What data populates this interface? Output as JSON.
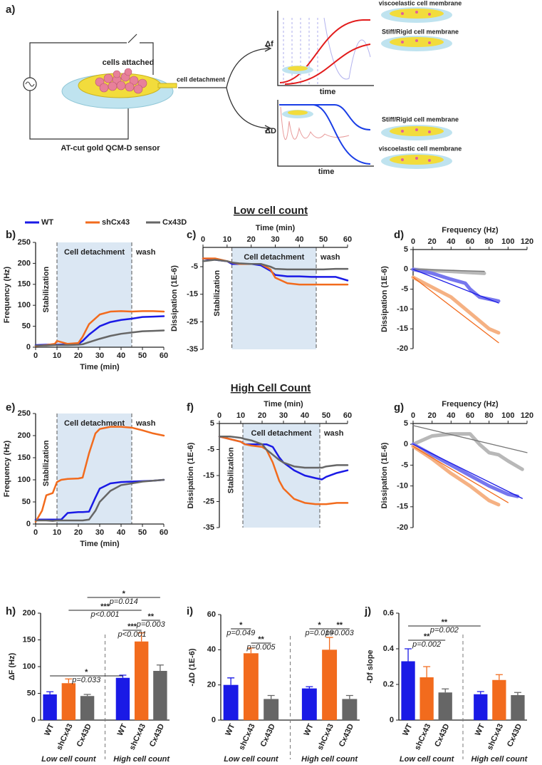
{
  "diagram": {
    "panel_label": "a)",
    "cells_label": "cells attached",
    "sensor_label": "AT-cut gold QCM-D sensor",
    "arrow_label": "cell detachment",
    "top_plot": {
      "y_label": "Δf",
      "x_label": "time",
      "upper_label": "viscoelastic cell membrane",
      "lower_label": "Stiff/Rigid cell membrane"
    },
    "bottom_plot": {
      "y_label": "ΔD",
      "x_label": "time",
      "upper_label": "Stiff/Rigid cell membrane",
      "lower_label": "viscoelastic cell membrane"
    }
  },
  "section_titles": [
    "Low cell count",
    "High Cell Count"
  ],
  "chart_data": [
    {
      "type": "line",
      "panel_label": "b)",
      "x_label": "Time (min)",
      "y_label": "Frequency (Hz)",
      "x_axis_position": "bottom",
      "xlim": [
        0,
        60
      ],
      "xticks": [
        0,
        10,
        20,
        30,
        40,
        50,
        60
      ],
      "ylim": [
        0,
        250
      ],
      "yticks": [
        0,
        50,
        100,
        150,
        200,
        250
      ],
      "shaded_region": [
        10,
        45
      ],
      "region_labels": [
        "Stabilization",
        "Cell detachment",
        "wash"
      ],
      "series": [
        {
          "name": "WT",
          "color": "#1a1ae6",
          "x": [
            0,
            5,
            9,
            10,
            15,
            20,
            22,
            25,
            30,
            35,
            40,
            45,
            50,
            55,
            60
          ],
          "values": [
            5,
            6,
            7,
            6,
            7,
            8,
            15,
            30,
            50,
            60,
            65,
            68,
            72,
            73,
            74
          ]
        },
        {
          "name": "shCx43",
          "color": "#f26b1d",
          "x": [
            0,
            5,
            9,
            10,
            15,
            20,
            22,
            25,
            30,
            35,
            40,
            45,
            50,
            55,
            60
          ],
          "values": [
            3,
            5,
            8,
            15,
            8,
            10,
            25,
            55,
            78,
            85,
            86,
            85,
            86,
            86,
            85
          ]
        },
        {
          "name": "Cx43D",
          "color": "#666666",
          "x": [
            0,
            5,
            9,
            10,
            15,
            20,
            22,
            25,
            30,
            35,
            40,
            45,
            50,
            55,
            60
          ],
          "values": [
            4,
            4,
            5,
            5,
            5,
            6,
            7,
            12,
            20,
            27,
            32,
            35,
            38,
            39,
            40
          ]
        }
      ]
    },
    {
      "type": "line",
      "panel_label": "c)",
      "x_label": "Time (min)",
      "y_label": "Dissipation (1E-6)",
      "x_axis_position": "top",
      "xlim": [
        0,
        60
      ],
      "xticks": [
        0,
        10,
        20,
        30,
        40,
        50,
        60
      ],
      "ylim": [
        -35,
        2
      ],
      "yticks": [
        -5,
        -15,
        -25,
        -35
      ],
      "shaded_region": [
        12,
        47
      ],
      "region_labels": [
        "Stabilization",
        "Cell detachment",
        "wash"
      ],
      "series": [
        {
          "color": "#1a1ae6",
          "x": [
            0,
            5,
            10,
            12,
            15,
            20,
            24,
            28,
            30,
            35,
            40,
            45,
            50,
            55,
            60
          ],
          "values": [
            -2,
            -2.5,
            -3,
            -4,
            -4,
            -4,
            -4.5,
            -6.5,
            -8,
            -8.5,
            -8.5,
            -8.7,
            -8.7,
            -8.7,
            -10
          ]
        },
        {
          "color": "#f26b1d",
          "x": [
            0,
            5,
            10,
            12,
            15,
            20,
            24,
            28,
            30,
            35,
            40,
            45,
            50,
            55,
            60
          ],
          "values": [
            -2,
            -2,
            -3,
            -3.5,
            -4,
            -4,
            -4,
            -6,
            -9,
            -11,
            -11.5,
            -11.5,
            -11.5,
            -11.5,
            -11.5
          ]
        },
        {
          "color": "#666666",
          "x": [
            0,
            5,
            10,
            12,
            15,
            20,
            24,
            28,
            30,
            35,
            40,
            45,
            50,
            55,
            60
          ],
          "values": [
            -3,
            -2.5,
            -3,
            -3.5,
            -3.8,
            -4,
            -4,
            -5,
            -5.8,
            -6,
            -6,
            -6,
            -6,
            -5.8,
            -5.8
          ]
        }
      ]
    },
    {
      "type": "line",
      "panel_label": "d)",
      "x_label": "Frequency (Hz)",
      "y_label": "Dissipation (1E-6)",
      "x_axis_position": "top",
      "xlim": [
        0,
        120
      ],
      "xticks": [
        0,
        20,
        40,
        60,
        80,
        100,
        120
      ],
      "ylim": [
        -20,
        5
      ],
      "yticks": [
        5,
        0,
        -5,
        -10,
        -15,
        -20
      ],
      "series": [
        {
          "color": "#b8b8b8",
          "x": [
            0,
            20,
            40,
            60,
            75
          ],
          "values": [
            0,
            -0.3,
            -0.5,
            -0.8,
            -1
          ]
        },
        {
          "color": "#7676ee",
          "x": [
            0,
            20,
            40,
            55,
            60,
            70,
            80,
            90
          ],
          "values": [
            0,
            -1,
            -2.5,
            -3.5,
            -5,
            -7,
            -7.5,
            -8
          ]
        },
        {
          "color": "#f5b183",
          "x": [
            0,
            20,
            40,
            60,
            80,
            90
          ],
          "values": [
            -2,
            -4.5,
            -7,
            -11,
            -15,
            -16
          ]
        }
      ],
      "fits": [
        {
          "color": "#777777",
          "x": [
            0,
            75
          ],
          "values": [
            0,
            -0.5
          ]
        },
        {
          "color": "#1a1ae6",
          "x": [
            0,
            90
          ],
          "values": [
            0,
            -8.5
          ]
        },
        {
          "color": "#f26b1d",
          "x": [
            0,
            90
          ],
          "values": [
            -2,
            -18.5
          ]
        }
      ]
    },
    {
      "type": "line",
      "panel_label": "e)",
      "x_label": "Time (min)",
      "y_label": "Frequency (Hz)",
      "x_axis_position": "bottom",
      "xlim": [
        0,
        60
      ],
      "xticks": [
        0,
        10,
        20,
        30,
        40,
        50,
        60
      ],
      "ylim": [
        0,
        250
      ],
      "yticks": [
        0,
        50,
        100,
        150,
        200,
        250
      ],
      "shaded_region": [
        10,
        45
      ],
      "region_labels": [
        "Stabilization",
        "Cell detachment",
        "wash"
      ],
      "series": [
        {
          "color": "#1a1ae6",
          "x": [
            0,
            3,
            5,
            8,
            10,
            12,
            15,
            20,
            22,
            25,
            28,
            30,
            35,
            40,
            45,
            50,
            55,
            60
          ],
          "values": [
            10,
            10,
            10,
            10,
            10,
            10,
            25,
            27,
            27,
            28,
            60,
            80,
            92,
            95,
            96,
            97,
            98,
            100
          ]
        },
        {
          "color": "#f26b1d",
          "x": [
            0,
            3,
            5,
            8,
            10,
            12,
            15,
            20,
            22,
            25,
            28,
            30,
            35,
            40,
            45,
            50,
            55,
            60
          ],
          "values": [
            5,
            30,
            65,
            70,
            95,
            100,
            102,
            103,
            105,
            160,
            205,
            215,
            220,
            220,
            218,
            212,
            205,
            200
          ]
        },
        {
          "color": "#666666",
          "x": [
            0,
            3,
            5,
            8,
            10,
            12,
            15,
            20,
            22,
            25,
            28,
            30,
            35,
            40,
            45,
            50,
            55,
            60
          ],
          "values": [
            8,
            8,
            8,
            7,
            8,
            8,
            8,
            8,
            8,
            10,
            30,
            50,
            75,
            88,
            92,
            96,
            98,
            100
          ]
        }
      ]
    },
    {
      "type": "line",
      "panel_label": "f)",
      "x_label": "Time (min)",
      "y_label": "Dissipation (1E-6)",
      "x_axis_position": "top",
      "xlim": [
        0,
        60
      ],
      "xticks": [
        0,
        10,
        20,
        30,
        40,
        50,
        60
      ],
      "ylim": [
        -35,
        5
      ],
      "yticks": [
        5,
        -5,
        -15,
        -25,
        -35
      ],
      "shaded_region": [
        11,
        47
      ],
      "region_labels": [
        "Stabilization",
        "Cell detachment",
        "wash"
      ],
      "series": [
        {
          "color": "#1a1ae6",
          "x": [
            0,
            5,
            10,
            12,
            15,
            20,
            22,
            25,
            28,
            30,
            35,
            40,
            45,
            48,
            50,
            55,
            60
          ],
          "values": [
            0,
            -1,
            -2,
            -3,
            -3,
            -3,
            -3,
            -4,
            -8,
            -10,
            -13,
            -15,
            -16,
            -16.5,
            -15.5,
            -14,
            -13
          ]
        },
        {
          "color": "#f26b1d",
          "x": [
            0,
            5,
            10,
            12,
            15,
            20,
            22,
            25,
            28,
            30,
            35,
            40,
            45,
            48,
            50,
            55,
            60
          ],
          "values": [
            0,
            -1,
            -2,
            -3,
            -3.5,
            -4,
            -5,
            -10,
            -17,
            -20,
            -24,
            -25.5,
            -26,
            -26,
            -26,
            -25.5,
            -25.5
          ]
        },
        {
          "color": "#666666",
          "x": [
            0,
            5,
            10,
            12,
            15,
            20,
            22,
            25,
            28,
            30,
            35,
            40,
            45,
            48,
            50,
            55,
            60
          ],
          "values": [
            0,
            0,
            -0.5,
            -1,
            -1.5,
            -3,
            -5,
            -7,
            -9,
            -10,
            -11.5,
            -12,
            -12,
            -12,
            -11.5,
            -11,
            -11
          ]
        }
      ]
    },
    {
      "type": "line",
      "panel_label": "g)",
      "x_label": "Frequency (Hz)",
      "y_label": "Dissipation (1E-6)",
      "x_axis_position": "top",
      "xlim": [
        0,
        120
      ],
      "xticks": [
        0,
        20,
        40,
        60,
        80,
        100,
        120
      ],
      "ylim": [
        -20,
        5
      ],
      "yticks": [
        5,
        0,
        -5,
        -10,
        -15,
        -20
      ],
      "series": [
        {
          "color": "#b8b8b8",
          "x": [
            0,
            20,
            40,
            60,
            70,
            80,
            90,
            100,
            115
          ],
          "values": [
            0,
            2,
            2.5,
            2.5,
            0,
            -2,
            -2.5,
            -4,
            -6
          ]
        },
        {
          "color": "#7676ee",
          "x": [
            0,
            20,
            40,
            60,
            80,
            100,
            110
          ],
          "values": [
            0,
            -2.5,
            -5,
            -7.5,
            -10,
            -12,
            -12.5
          ]
        },
        {
          "color": "#f5b183",
          "x": [
            0,
            20,
            40,
            60,
            80,
            90
          ],
          "values": [
            -0.5,
            -3.5,
            -7,
            -10,
            -13.5,
            -14.5
          ]
        }
      ],
      "fits": [
        {
          "color": "#777777",
          "x": [
            0,
            120
          ],
          "values": [
            4.5,
            -2
          ]
        },
        {
          "color": "#1a1ae6",
          "x": [
            0,
            115
          ],
          "values": [
            0,
            -13
          ]
        },
        {
          "color": "#f26b1d",
          "x": [
            0,
            100
          ],
          "values": [
            -0.5,
            -14
          ]
        }
      ]
    },
    {
      "type": "bar",
      "panel_label": "h)",
      "y_label": "ΔF (Hz)",
      "ylim": [
        0,
        200
      ],
      "yticks": [
        0,
        50,
        100,
        150,
        200
      ],
      "categories": [
        "WT",
        "shCx43",
        "Cx43D",
        "WT",
        "shCx43",
        "Cx43D"
      ],
      "group_labels": [
        "Low cell count",
        "High cell count"
      ],
      "values": [
        48,
        69,
        45,
        79,
        147,
        92
      ],
      "errors": [
        5,
        8,
        3,
        5,
        16,
        11
      ],
      "colors": [
        "#1a1ae6",
        "#f26b1d",
        "#666666",
        "#1a1ae6",
        "#f26b1d",
        "#666666"
      ],
      "significance": [
        {
          "stars": "*",
          "p": "p=0.014"
        },
        {
          "stars": "***",
          "p": "p<0.001"
        },
        {
          "stars": "**",
          "p": "p=0.003"
        },
        {
          "stars": "***",
          "p": "p<0.001"
        },
        {
          "stars": "*",
          "p": "p=0.033"
        }
      ]
    },
    {
      "type": "bar",
      "panel_label": "i)",
      "y_label": "-ΔD (1E-6)",
      "ylim": [
        0,
        60
      ],
      "yticks": [
        0,
        20,
        40,
        60
      ],
      "categories": [
        "WT",
        "shCx43",
        "Cx43D",
        "WT",
        "shCx43",
        "Cx43D"
      ],
      "group_labels": [
        "Low cell count",
        "High cell count"
      ],
      "values": [
        20,
        38,
        12,
        18,
        40,
        12
      ],
      "errors": [
        4,
        3,
        2,
        1,
        7,
        2
      ],
      "colors": [
        "#1a1ae6",
        "#f26b1d",
        "#666666",
        "#1a1ae6",
        "#f26b1d",
        "#666666"
      ],
      "significance": [
        {
          "stars": "*",
          "p": "p=0.049"
        },
        {
          "stars": "**",
          "p": "p=0.005"
        },
        {
          "stars": "*",
          "p": "p=0.019"
        },
        {
          "stars": "**",
          "p": "p=0.003"
        }
      ]
    },
    {
      "type": "bar",
      "panel_label": "j)",
      "y_label": "-Df slope",
      "ylim": [
        0,
        0.6
      ],
      "yticks": [
        0,
        0.2,
        0.4,
        0.6
      ],
      "categories": [
        "WT",
        "shCx43",
        "Cx43D",
        "WT",
        "shCx43",
        "Cx43D"
      ],
      "group_labels": [
        "Low cell count",
        "High cell count"
      ],
      "values": [
        0.33,
        0.24,
        0.155,
        0.145,
        0.225,
        0.14
      ],
      "errors": [
        0.07,
        0.06,
        0.02,
        0.015,
        0.03,
        0.015
      ],
      "colors": [
        "#1a1ae6",
        "#f26b1d",
        "#666666",
        "#1a1ae6",
        "#f26b1d",
        "#666666"
      ],
      "significance": [
        {
          "stars": "**",
          "p": "p=0.002"
        },
        {
          "stars": "**",
          "p": "p=0.002"
        }
      ]
    }
  ]
}
